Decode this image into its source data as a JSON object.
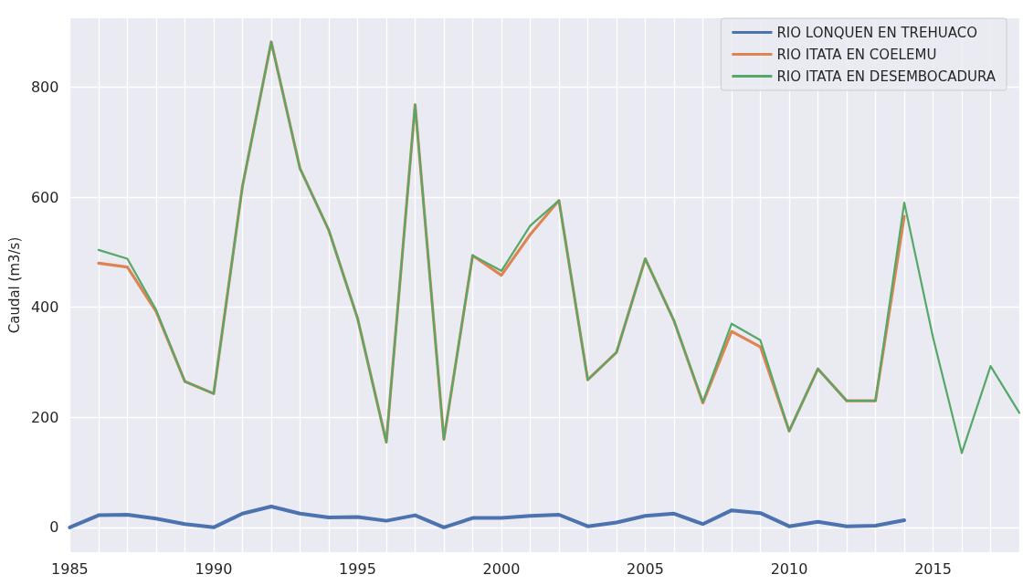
{
  "chart_data": {
    "type": "line",
    "ylabel": "Caudal (m3/s)",
    "x": [
      1985,
      1986,
      1987,
      1988,
      1989,
      1990,
      1991,
      1992,
      1993,
      1994,
      1995,
      1996,
      1997,
      1998,
      1999,
      2000,
      2001,
      2002,
      2003,
      2004,
      2005,
      2006,
      2007,
      2008,
      2009,
      2010,
      2011,
      2012,
      2013,
      2014,
      2015,
      2016,
      2017,
      2018
    ],
    "series": [
      {
        "name": "RIO LONQUEN EN TREHUACO",
        "color": "#4c72b0",
        "values": [
          0,
          22,
          23,
          16,
          6,
          0,
          25,
          38,
          25,
          18,
          19,
          12,
          22,
          0,
          17,
          17,
          21,
          23,
          2,
          9,
          21,
          25,
          6,
          31,
          26,
          2,
          10,
          2,
          3,
          13,
          null,
          null,
          null,
          null
        ]
      },
      {
        "name": "RIO ITATA EN COELEMU",
        "color": "#dd8452",
        "values": [
          null,
          480,
          473,
          392,
          265,
          243,
          620,
          882,
          652,
          540,
          380,
          155,
          768,
          160,
          494,
          458,
          532,
          594,
          268,
          318,
          488,
          375,
          226,
          356,
          328,
          175,
          288,
          230,
          230,
          565,
          null,
          null,
          null,
          null
        ]
      },
      {
        "name": "RIO ITATA EN DESEMBOCADURA",
        "color": "#55a868",
        "values": [
          null,
          504,
          488,
          395,
          265,
          243,
          620,
          882,
          652,
          540,
          380,
          155,
          768,
          160,
          494,
          466,
          548,
          594,
          268,
          318,
          488,
          375,
          228,
          370,
          340,
          175,
          288,
          230,
          230,
          590,
          345,
          135,
          293,
          208
        ]
      }
    ],
    "xlim": [
      1985,
      2018
    ],
    "xticks": [
      1985,
      {
        "value": 1986,
        "label": null
      },
      {
        "value": 1987,
        "label": null
      },
      {
        "value": 1988,
        "label": null
      },
      {
        "value": 1989,
        "label": null
      },
      1990,
      {
        "value": 1991,
        "label": null
      },
      {
        "value": 1992,
        "label": null
      },
      {
        "value": 1993,
        "label": null
      },
      {
        "value": 1994,
        "label": null
      },
      1995,
      {
        "value": 1996,
        "label": null
      },
      {
        "value": 1997,
        "label": null
      },
      {
        "value": 1998,
        "label": null
      },
      {
        "value": 1999,
        "label": null
      },
      2000,
      {
        "value": 2001,
        "label": null
      },
      {
        "value": 2002,
        "label": null
      },
      {
        "value": 2003,
        "label": null
      },
      {
        "value": 2004,
        "label": null
      },
      2005,
      {
        "value": 2006,
        "label": null
      },
      {
        "value": 2007,
        "label": null
      },
      {
        "value": 2008,
        "label": null
      },
      {
        "value": 2009,
        "label": null
      },
      2010,
      {
        "value": 2011,
        "label": null
      },
      {
        "value": 2012,
        "label": null
      },
      {
        "value": 2013,
        "label": null
      },
      {
        "value": 2014,
        "label": null
      },
      2015,
      {
        "value": 2016,
        "label": null
      },
      {
        "value": 2017,
        "label": null
      },
      {
        "value": 2018,
        "label": null
      }
    ],
    "ylim": [
      -45,
      925
    ],
    "yticks": [
      0,
      200,
      400,
      600,
      800
    ],
    "grid": true,
    "legend": "top right",
    "marker": "none",
    "line_style": "solid"
  }
}
